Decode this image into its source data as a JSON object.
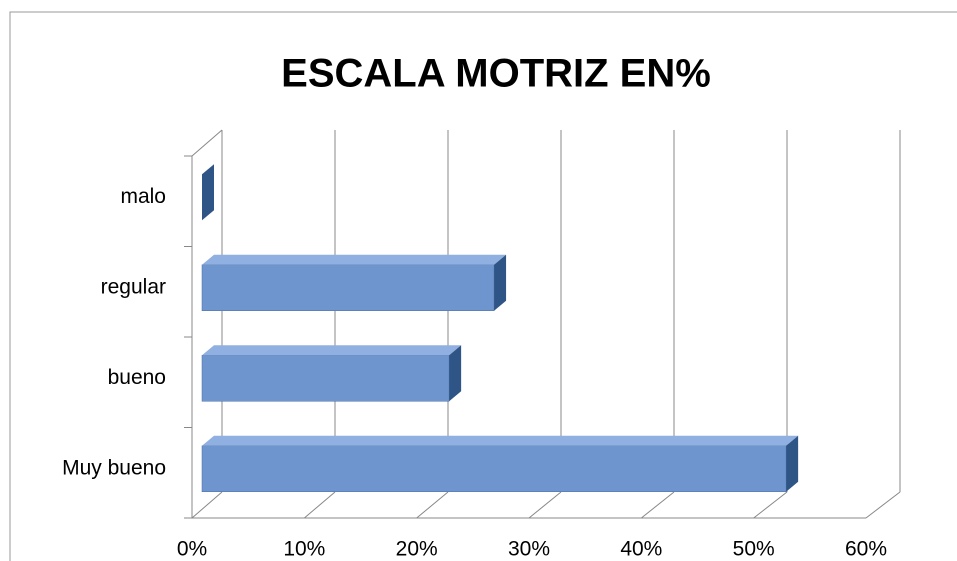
{
  "chart_data": {
    "type": "bar",
    "orientation": "horizontal",
    "title": "ESCALA MOTRIZ EN%",
    "categories": [
      "Muy bueno",
      "bueno",
      "regular",
      "malo"
    ],
    "values": [
      52,
      22,
      26,
      0
    ],
    "color": "#6f95cf",
    "xlim": [
      0,
      60
    ],
    "xticks": [
      {
        "value": 0,
        "label": "0%"
      },
      {
        "value": 10,
        "label": "10%"
      },
      {
        "value": 20,
        "label": "20%"
      },
      {
        "value": 30,
        "label": "30%"
      },
      {
        "value": 40,
        "label": "40%"
      },
      {
        "value": 50,
        "label": "50%"
      },
      {
        "value": 60,
        "label": "60%"
      }
    ],
    "grid": true
  }
}
